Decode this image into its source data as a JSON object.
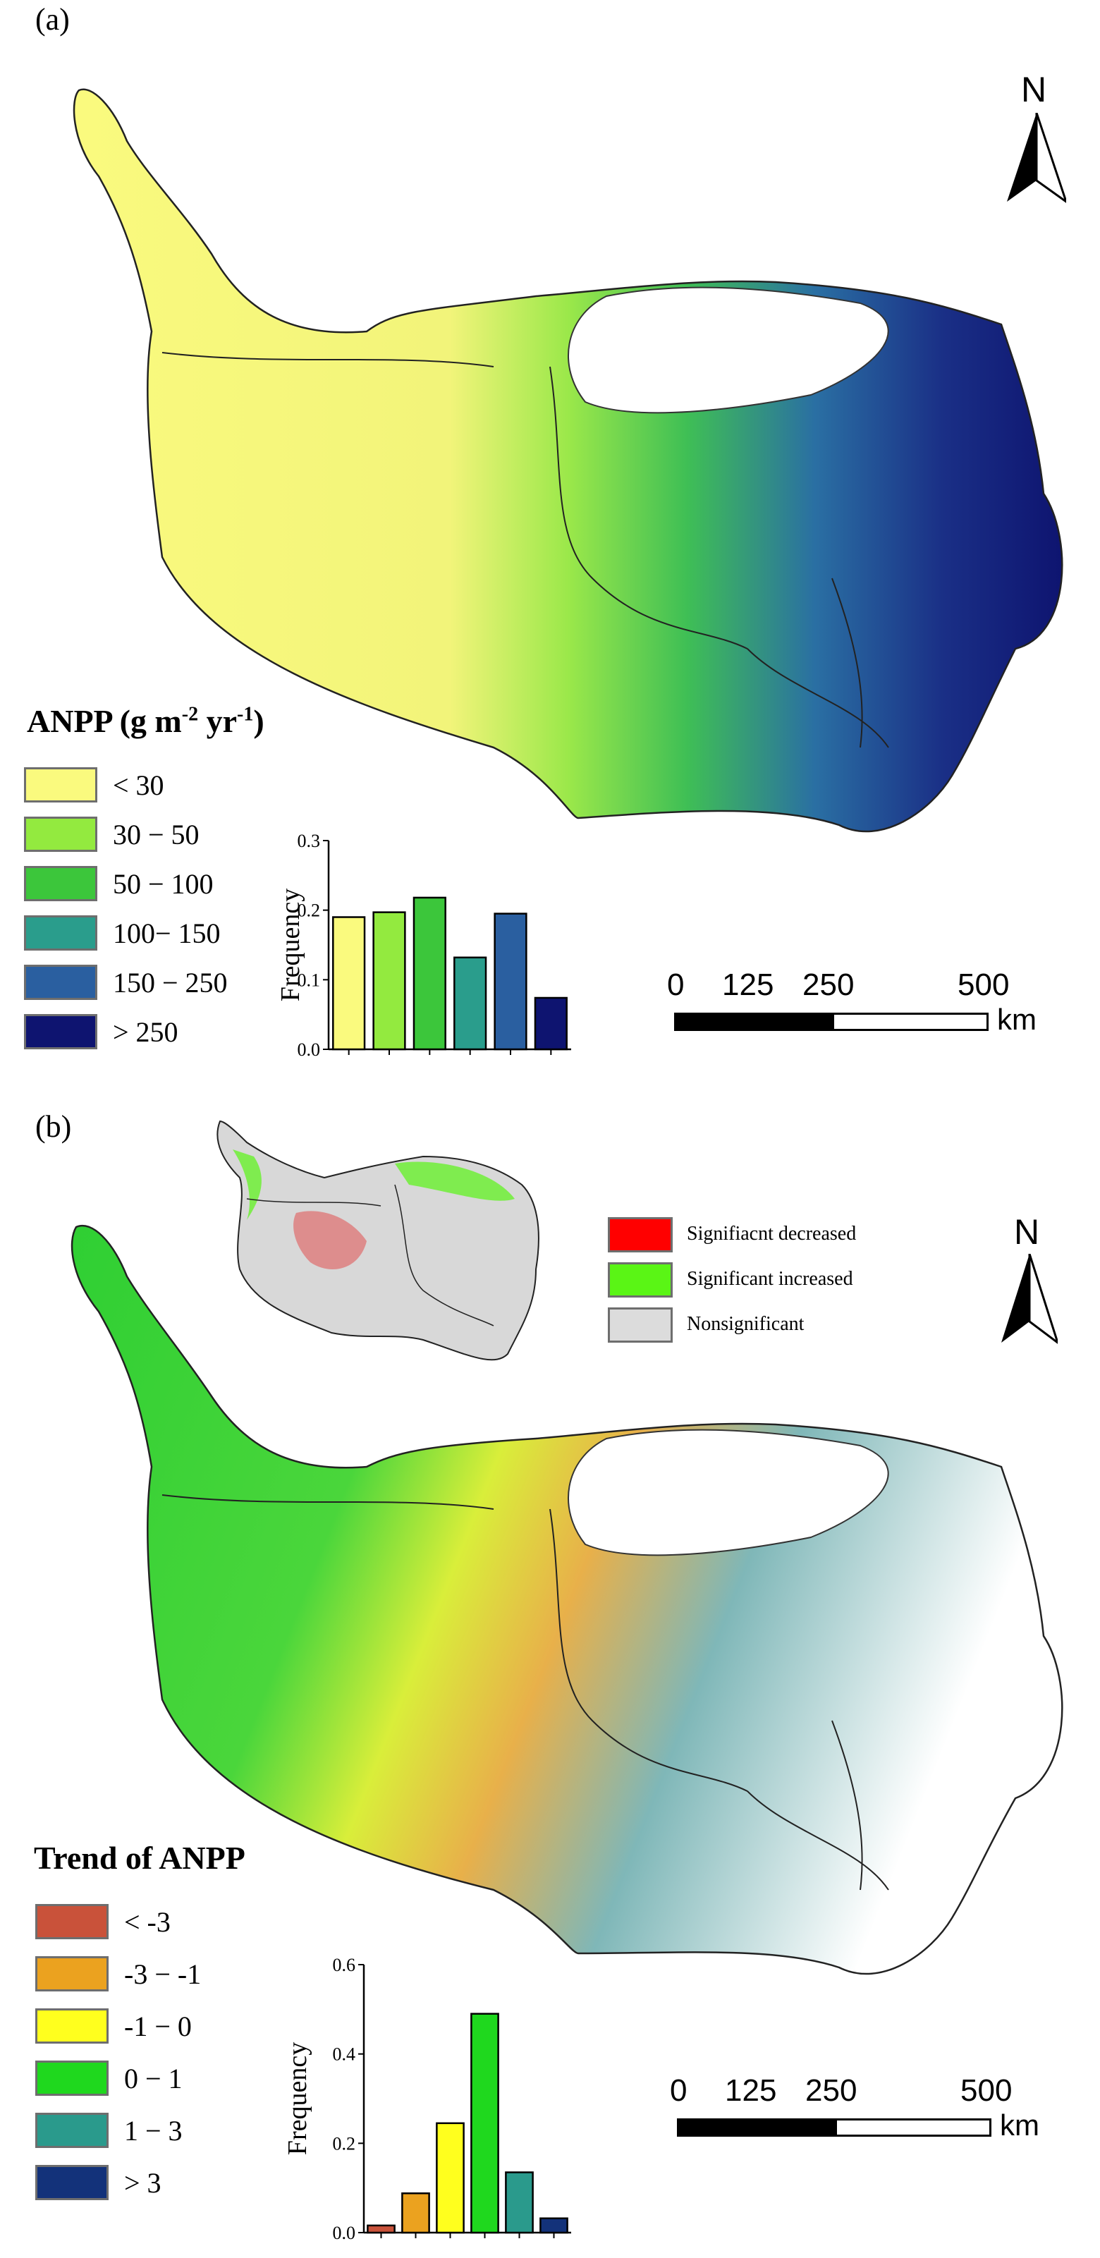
{
  "panel_a": {
    "label": "(a)",
    "legend_title": "ANPP (g m",
    "legend_title_sup1": "-2",
    "legend_title_mid": " yr",
    "legend_title_sup2": "-1",
    "legend_title_end": ")",
    "legend": [
      {
        "label": "< 30",
        "color": "#fafa7e"
      },
      {
        "label": "30 − 50",
        "color": "#93ea3f"
      },
      {
        "label": "50 − 100",
        "color": "#3cc63b"
      },
      {
        "label": "100− 150",
        "color": "#2a9d8c"
      },
      {
        "label": "150 − 250",
        "color": "#2a5fa0"
      },
      {
        "label": "> 250",
        "color": "#0e1470"
      }
    ],
    "north": "N",
    "scale": {
      "ticks": [
        "0",
        "125",
        "250",
        "500"
      ],
      "unit": "km"
    },
    "histogram": {
      "type": "bar",
      "ylabel": "Frequency",
      "ylim": [
        0,
        0.3
      ],
      "yticks": [
        "0.0",
        "0.1",
        "0.2",
        "0.3"
      ],
      "categories": [
        "< 30",
        "30 − 50",
        "50 − 100",
        "100− 150",
        "150 − 250",
        "> 250"
      ],
      "values": [
        0.19,
        0.197,
        0.218,
        0.132,
        0.195,
        0.074
      ],
      "colors": [
        "#fafa7e",
        "#93ea3f",
        "#3cc63b",
        "#2a9d8c",
        "#2a5fa0",
        "#0e1470"
      ]
    }
  },
  "panel_b": {
    "label": "(b)",
    "legend_title": "Trend of ANPP",
    "legend": [
      {
        "label": "< -3",
        "color": "#c9523a"
      },
      {
        "label": "-3 − -1",
        "color": "#eba21f"
      },
      {
        "label": "-1 − 0",
        "color": "#ffff1e"
      },
      {
        "label": "0 − 1",
        "color": "#1fd81e"
      },
      {
        "label": "1 − 3",
        "color": "#2a9a8c"
      },
      {
        "label": "> 3",
        "color": "#13327a"
      }
    ],
    "significance_legend": [
      {
        "label": "Signifiacnt decreased",
        "color": "#ff0000"
      },
      {
        "label": "Significant increased",
        "color": "#5af515"
      },
      {
        "label": "Nonsignificant",
        "color": "#dcdcdc"
      }
    ],
    "north": "N",
    "scale": {
      "ticks": [
        "0",
        "125",
        "250",
        "500"
      ],
      "unit": "km"
    },
    "histogram": {
      "type": "bar",
      "ylabel": "Frequency",
      "ylim": [
        0,
        0.6
      ],
      "yticks": [
        "0.0",
        "0.2",
        "0.4",
        "0.6"
      ],
      "categories": [
        "< -3",
        "-3 − -1",
        "-1 − 0",
        "0 − 1",
        "1 − 3",
        "> 3"
      ],
      "values": [
        0.016,
        0.088,
        0.245,
        0.49,
        0.135,
        0.032
      ],
      "colors": [
        "#c9523a",
        "#eba21f",
        "#ffff1e",
        "#1fd81e",
        "#2a9a8c",
        "#13327a"
      ]
    }
  },
  "chart_data": [
    {
      "type": "bar",
      "ylabel": "Frequency",
      "ylim": [
        0,
        0.3
      ],
      "categories": [
        "< 30",
        "30 − 50",
        "50 − 100",
        "100− 150",
        "150 − 250",
        "> 250"
      ],
      "values": [
        0.19,
        0.197,
        0.218,
        0.132,
        0.195,
        0.074
      ]
    },
    {
      "type": "bar",
      "ylabel": "Frequency",
      "ylim": [
        0,
        0.6
      ],
      "categories": [
        "< -3",
        "-3 − -1",
        "-1 − 0",
        "0 − 1",
        "1 − 3",
        "> 3"
      ],
      "values": [
        0.016,
        0.088,
        0.245,
        0.49,
        0.135,
        0.032
      ]
    }
  ]
}
